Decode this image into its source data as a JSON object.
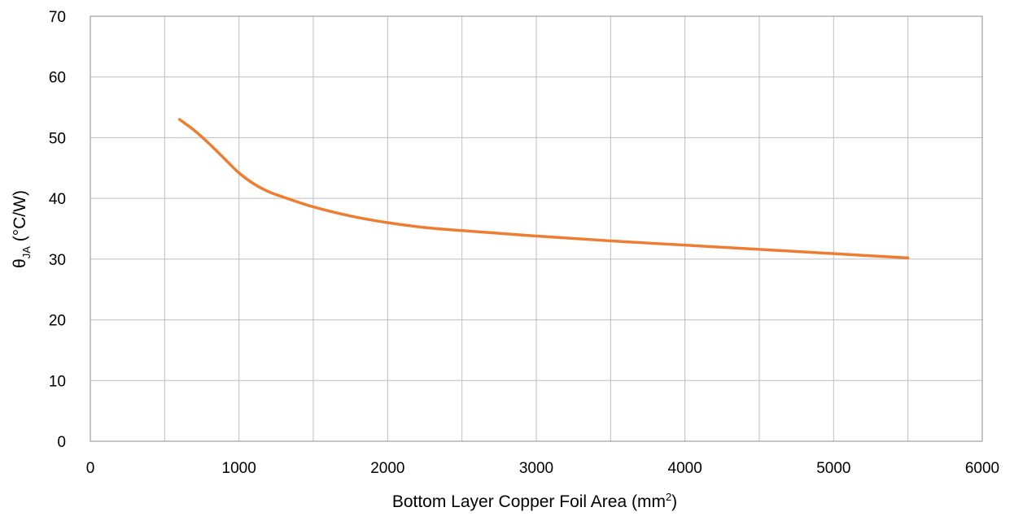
{
  "chart_data": {
    "type": "line",
    "xlabel": {
      "text": "Bottom Layer Copper Foil Area (mm",
      "superscript": "2",
      "suffix": ")"
    },
    "ylabel": {
      "symbol": "θ",
      "subscript": "JA",
      "suffix": " (°C/W)"
    },
    "xlim": [
      0,
      6000
    ],
    "ylim": [
      0,
      70
    ],
    "x_ticks": [
      "0",
      "1000",
      "2000",
      "3000",
      "4000",
      "5000",
      "6000"
    ],
    "y_ticks": [
      "0",
      "10",
      "20",
      "30",
      "40",
      "50",
      "60",
      "70"
    ],
    "x_minor_gridlines": [
      500,
      1500,
      2500,
      3500,
      4500,
      5500
    ],
    "grid": true,
    "legend": "none",
    "series": [
      {
        "color": "#ed7d31",
        "x": [
          600,
          700,
          800,
          900,
          1000,
          1100,
          1200,
          1300,
          1500,
          1750,
          2000,
          2250,
          2500,
          3000,
          3500,
          4000,
          4500,
          5000,
          5500
        ],
        "y": [
          53.0,
          51.2,
          49.0,
          46.6,
          44.2,
          42.4,
          41.1,
          40.2,
          38.6,
          37.1,
          36.0,
          35.2,
          34.7,
          33.8,
          33.0,
          32.3,
          31.6,
          30.9,
          30.2
        ]
      }
    ]
  }
}
